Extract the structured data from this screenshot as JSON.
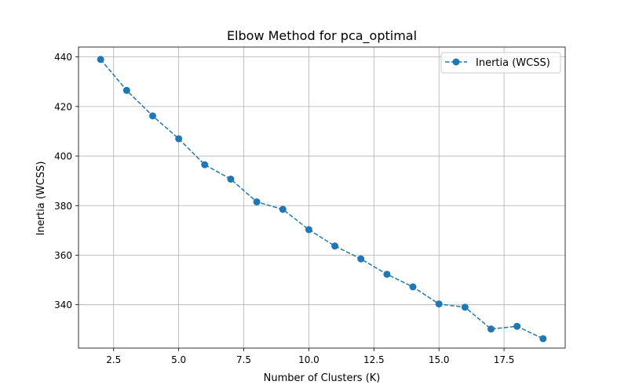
{
  "chart_data": {
    "type": "line",
    "title": "Elbow Method for pca_optimal",
    "xlabel": "Number of Clusters (K)",
    "ylabel": "Inertia (WCSS)",
    "xlim": [
      1.15,
      19.85
    ],
    "ylim": [
      322.5,
      444.0
    ],
    "x_ticks": [
      2.5,
      5.0,
      7.5,
      10.0,
      12.5,
      15.0,
      17.5
    ],
    "x_tick_labels": [
      "2.5",
      "5.0",
      "7.5",
      "10.0",
      "12.5",
      "15.0",
      "17.5"
    ],
    "y_ticks": [
      340,
      360,
      380,
      400,
      420,
      440
    ],
    "y_tick_labels": [
      "340",
      "360",
      "380",
      "400",
      "420",
      "440"
    ],
    "grid": true,
    "legend_position": "top-right",
    "series": [
      {
        "name": "Inertia (WCSS)",
        "color": "#1f77b4",
        "line_style": "dashed",
        "marker": "circle",
        "x": [
          2,
          3,
          4,
          5,
          6,
          7,
          8,
          9,
          10,
          11,
          12,
          13,
          14,
          15,
          16,
          17,
          18,
          19
        ],
        "y": [
          439.0,
          426.5,
          416.2,
          407.0,
          396.5,
          390.7,
          381.5,
          378.5,
          370.3,
          363.7,
          358.5,
          352.3,
          347.2,
          340.3,
          339.0,
          330.2,
          331.3,
          326.3
        ]
      }
    ]
  }
}
